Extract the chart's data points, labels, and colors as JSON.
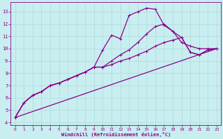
{
  "xlabel": "Windchill (Refroidissement éolien,°C)",
  "bg_color": "#c8eef0",
  "grid_color": "#b0d8dc",
  "line_color": "#8b008b",
  "xlim": [
    -0.5,
    23.5
  ],
  "ylim": [
    3.8,
    13.8
  ],
  "xticks": [
    0,
    1,
    2,
    3,
    4,
    5,
    6,
    7,
    8,
    9,
    10,
    11,
    12,
    13,
    14,
    15,
    16,
    17,
    18,
    19,
    20,
    21,
    22,
    23
  ],
  "yticks": [
    4,
    5,
    6,
    7,
    8,
    9,
    10,
    11,
    12,
    13
  ],
  "line1_x": [
    0,
    1,
    2,
    3,
    4,
    5,
    6,
    7,
    8,
    9,
    10,
    11,
    12,
    13,
    14,
    15,
    16,
    17,
    18,
    19,
    20,
    21,
    22,
    23
  ],
  "line1_y": [
    4.4,
    5.6,
    6.2,
    6.5,
    7.0,
    7.2,
    7.5,
    7.8,
    8.1,
    8.5,
    9.9,
    11.1,
    10.8,
    12.7,
    13.0,
    13.3,
    13.2,
    11.9,
    11.4,
    10.5,
    10.2,
    10.0,
    10.0,
    10.0
  ],
  "line2_x": [
    0,
    1,
    2,
    3,
    4,
    5,
    6,
    7,
    8,
    9,
    10,
    11,
    12,
    13,
    14,
    15,
    16,
    17,
    18,
    19,
    20,
    21,
    22,
    23
  ],
  "line2_y": [
    4.4,
    5.6,
    6.2,
    6.5,
    7.0,
    7.2,
    7.5,
    7.8,
    8.1,
    8.5,
    8.5,
    9.0,
    9.5,
    9.9,
    10.5,
    11.2,
    11.8,
    12.0,
    11.4,
    10.9,
    9.7,
    9.5,
    9.9,
    10.0
  ],
  "line3_x": [
    0,
    1,
    2,
    3,
    4,
    5,
    6,
    7,
    8,
    9,
    10,
    11,
    12,
    13,
    14,
    15,
    16,
    17,
    18,
    19,
    20,
    21,
    22,
    23
  ],
  "line3_y": [
    4.4,
    5.6,
    6.2,
    6.5,
    7.0,
    7.2,
    7.5,
    7.8,
    8.1,
    8.5,
    8.5,
    8.7,
    9.0,
    9.2,
    9.5,
    9.8,
    10.2,
    10.5,
    10.7,
    10.9,
    9.7,
    9.5,
    9.9,
    10.0
  ],
  "line4_x": [
    0,
    23
  ],
  "line4_y": [
    4.4,
    10.0
  ],
  "marker_size": 2.5,
  "line_width": 0.9
}
